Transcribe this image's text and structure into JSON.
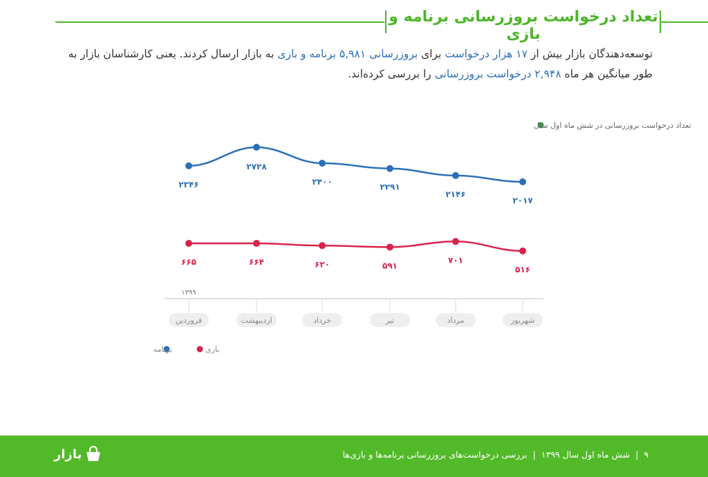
{
  "header": {
    "title": "تعداد درخواست بروزرسانی برنامه و بازی"
  },
  "paragraph": {
    "segments": [
      {
        "text": "توسعه‌دهندگان بازار بیش از ",
        "highlight": false
      },
      {
        "text": "۱۷ هزار درخواست",
        "highlight": true
      },
      {
        "text": " برای ",
        "highlight": false
      },
      {
        "text": "بروزرسانی ۵,۹۸۱ برنامه و بازی",
        "highlight": true
      },
      {
        "text": " به بازار ارسال کردند. یعنی کارشناسان بازار به طور میانگین هر ماه ",
        "highlight": false
      },
      {
        "text": "۲,۹۴۸ درخواست بروزرسانی",
        "highlight": true
      },
      {
        "text": " را بررسی کرده‌اند.",
        "highlight": false
      }
    ]
  },
  "chart_data": {
    "type": "line",
    "title": "تعداد درخواست بروزرسانی در شش ماه اول سال",
    "year_label": "۱۳۹۹",
    "categories": [
      "فروردین",
      "اردیبهشت",
      "خرداد",
      "تیر",
      "مرداد",
      "شهریور"
    ],
    "series": [
      {
        "name": "برنامه",
        "color": "#2c6fb7",
        "values": [
          2346,
          2728,
          2400,
          2291,
          2146,
          2017
        ],
        "labels": [
          "۲۳۴۶",
          "۲۷۲۸",
          "۲۴۰۰",
          "۲۲۹۱",
          "۲۱۴۶",
          "۲۰۱۷"
        ]
      },
      {
        "name": "بازی",
        "color": "#d8244a",
        "values": [
          665,
          664,
          620,
          591,
          701,
          516
        ],
        "labels": [
          "۶۶۵",
          "۶۶۴",
          "۶۲۰",
          "۵۹۱",
          "۷۰۱",
          "۵۱۶"
        ]
      }
    ],
    "title_marker_color": "#2aa04a",
    "legend_placement": "bottom-left",
    "grid": false
  },
  "footer": {
    "page": "۹",
    "period": "شش ماه اول سال ۱۳۹۹",
    "section": "بررسی درخواست‌های بروزرسانی برنامه‌ها و بازی‌ها",
    "separator": "|",
    "logo": "بازار"
  }
}
